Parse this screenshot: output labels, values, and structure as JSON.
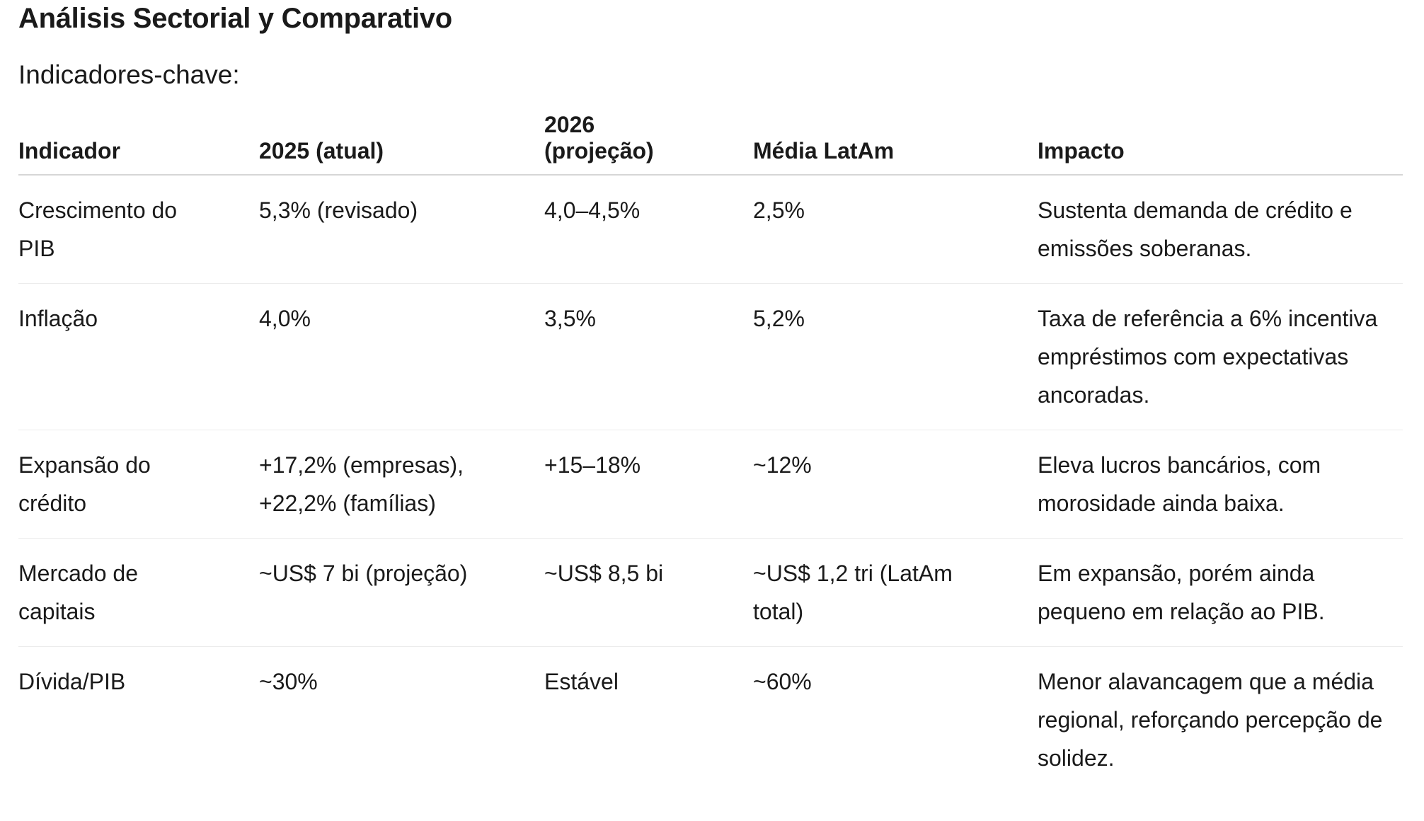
{
  "page": {
    "title": "Análisis Sectorial y Comparativo",
    "subtitle": "Indicadores-chave:"
  },
  "table": {
    "headers": [
      "Indicador",
      "2025 (atual)",
      "2026 (projeção)",
      "Média LatAm",
      "Impacto"
    ],
    "rows": [
      [
        "Crescimento do PIB",
        "5,3% (revisado)",
        "4,0–4,5%",
        "2,5%",
        "Sustenta demanda de crédito e emissões soberanas."
      ],
      [
        "Inflação",
        "4,0%",
        "3,5%",
        "5,2%",
        "Taxa de referência a 6% incentiva empréstimos com expectativas ancoradas."
      ],
      [
        "Expansão do crédito",
        "+17,2% (empresas), +22,2% (famílias)",
        "+15–18%",
        "~12%",
        "Eleva lucros bancários, com morosidade ainda baixa."
      ],
      [
        "Mercado de capitais",
        "~US$ 7 bi (projeção)",
        "~US$ 8,5 bi",
        "~US$ 1,2 tri (LatAm total)",
        "Em expansão, porém ainda pequeno em relação ao PIB."
      ],
      [
        "Dívida/PIB",
        "~30%",
        "Estável",
        "~60%",
        "Menor alavancagem que a média regional, reforçando percepção de solidez."
      ]
    ]
  }
}
